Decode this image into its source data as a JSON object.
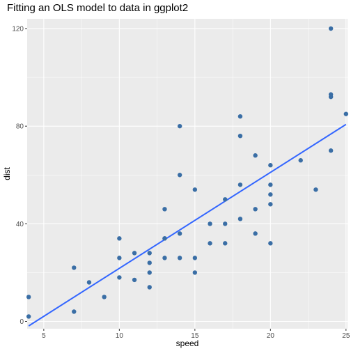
{
  "chart_data": {
    "type": "scatter",
    "title": "Fitting an OLS model to data in ggplot2",
    "xlabel": "speed",
    "ylabel": "dist",
    "xlim": [
      3.9,
      25.1
    ],
    "ylim": [
      -3,
      124
    ],
    "xticks": [
      "5",
      "10",
      "15",
      "20",
      "25"
    ],
    "yticks": [
      "0",
      "40",
      "80",
      "120"
    ],
    "grid": true,
    "legend": "none",
    "colors": {
      "panel_background": "#ebebeb",
      "grid": "#ffffff",
      "points": "#3a6ea5",
      "fit_line": "#3366ff"
    },
    "series": [
      {
        "type": "scatter",
        "x": [
          4,
          4,
          7,
          7,
          8,
          9,
          10,
          10,
          10,
          11,
          11,
          12,
          12,
          12,
          12,
          13,
          13,
          13,
          13,
          14,
          14,
          14,
          14,
          15,
          15,
          15,
          16,
          16,
          17,
          17,
          17,
          18,
          18,
          18,
          18,
          19,
          19,
          19,
          20,
          20,
          20,
          20,
          20,
          22,
          23,
          24,
          24,
          24,
          24,
          25
        ],
        "y": [
          2,
          10,
          4,
          22,
          16,
          10,
          18,
          26,
          34,
          17,
          28,
          14,
          20,
          24,
          28,
          26,
          34,
          34,
          46,
          26,
          36,
          60,
          80,
          20,
          26,
          54,
          32,
          40,
          32,
          40,
          50,
          42,
          56,
          76,
          84,
          36,
          46,
          68,
          32,
          48,
          52,
          56,
          64,
          66,
          54,
          70,
          92,
          93,
          120,
          85
        ]
      },
      {
        "type": "line",
        "x": [
          4,
          25
        ],
        "y": [
          -1.85,
          80.73
        ]
      }
    ]
  }
}
